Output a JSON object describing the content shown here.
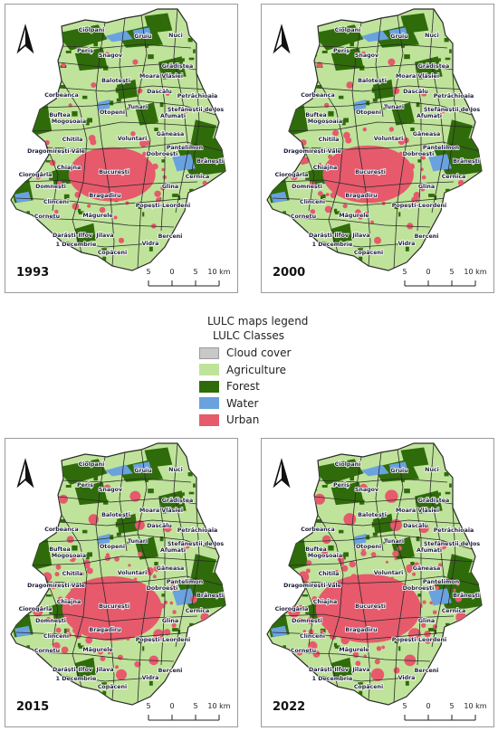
{
  "panels": [
    {
      "year": "1993",
      "urban_level": 0.0
    },
    {
      "year": "2000",
      "urban_level": 0.22
    },
    {
      "year": "2015",
      "urban_level": 0.7
    },
    {
      "year": "2022",
      "urban_level": 1.0
    }
  ],
  "localities": [
    "Ciolpani",
    "Gruiu",
    "Nuci",
    "Periș",
    "Snagov",
    "Grădiștea",
    "Balotești",
    "Moara Vlăsiei",
    "Corbeanca",
    "Dascălu",
    "Petrăchioaia",
    "Buftea",
    "Otopeni",
    "Tunari",
    "Afumați",
    "Ștefăneștii de Jos",
    "Mogoșoaia",
    "Găneasa",
    "Voluntari",
    "Chitila",
    "Dragomirești-Vale",
    "Pantelimon",
    "Brănești",
    "Dobroești",
    "Chiajna",
    "București",
    "Ciorogârla",
    "Domnești",
    "Cernica",
    "Glina",
    "Bragadiru",
    "Clinceni",
    "Popești-Leordeni",
    "Cornetu",
    "Măgurele",
    "Jilava",
    "Berceni",
    "Darăști-Ilfov",
    "Vidra",
    "1 Decembrie",
    "Copăceni"
  ],
  "scale_bar": {
    "ticks": [
      "5",
      "0",
      "5",
      "10 km"
    ]
  },
  "legend": {
    "title": "LULC maps legend",
    "subtitle": "LULC Classes",
    "items": [
      {
        "label": "Cloud cover",
        "color": "#c8c8c8"
      },
      {
        "label": "Agriculture",
        "color": "#bfe39a"
      },
      {
        "label": "Forest",
        "color": "#2f6b0a"
      },
      {
        "label": "Water",
        "color": "#6aa2e0"
      },
      {
        "label": "Urban",
        "color": "#e65a6c"
      }
    ]
  }
}
